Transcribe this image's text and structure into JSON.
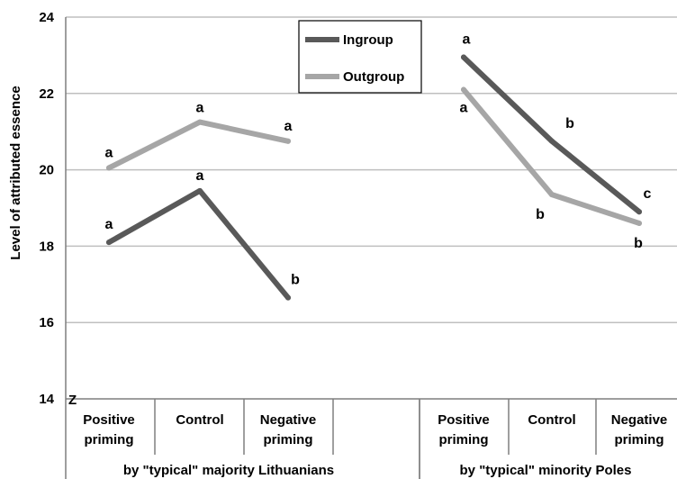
{
  "chart_data": {
    "type": "line",
    "ylabel": "Level of attributed essence",
    "ylim": [
      14,
      24
    ],
    "yticks": [
      14,
      16,
      18,
      20,
      22,
      24
    ],
    "grid": true,
    "legend_position": "top-center",
    "axis_break_mark": "Z",
    "categories": [
      "Positive priming",
      "Control",
      "Negative priming"
    ],
    "category_lines": [
      [
        "Positive",
        "priming"
      ],
      [
        "Control"
      ],
      [
        "Negative",
        "priming"
      ]
    ],
    "groups": [
      {
        "name": "by \"typical\" majority Lithuanians",
        "series": [
          {
            "name": "Ingroup",
            "color": "#595959",
            "values": [
              18.1,
              19.45,
              16.65
            ],
            "labels": [
              "a",
              "a",
              "b"
            ]
          },
          {
            "name": "Outgroup",
            "color": "#a6a6a6",
            "values": [
              20.05,
              21.25,
              20.75
            ],
            "labels": [
              "a",
              "a",
              "a"
            ]
          }
        ]
      },
      {
        "name": "by \"typical\" minority  Poles",
        "series": [
          {
            "name": "Ingroup",
            "color": "#595959",
            "values": [
              22.95,
              20.75,
              18.9
            ],
            "labels": [
              "a",
              "b",
              "c"
            ]
          },
          {
            "name": "Outgroup",
            "color": "#a6a6a6",
            "values": [
              22.1,
              19.35,
              18.6
            ],
            "labels": [
              "a",
              "b",
              "b"
            ]
          }
        ]
      }
    ],
    "legend": [
      {
        "name": "Ingroup",
        "color": "#595959"
      },
      {
        "name": "Outgroup",
        "color": "#a6a6a6"
      }
    ]
  }
}
